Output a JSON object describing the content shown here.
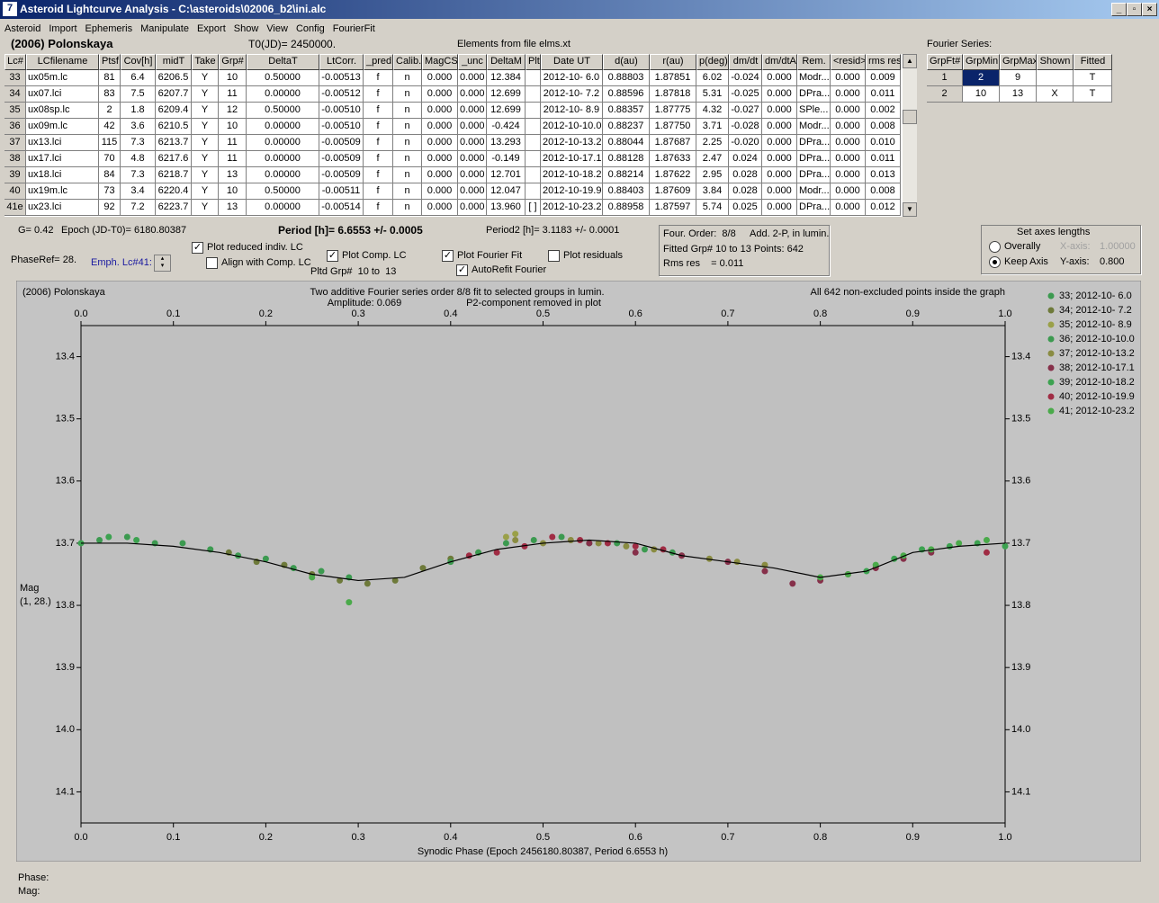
{
  "window": {
    "title": "Asteroid Lightcurve Analysis - C:\\asteroids\\02006_b2\\ini.alc",
    "menu": [
      "Asteroid",
      "Import",
      "Ephemeris",
      "Manipulate",
      "Export",
      "Show",
      "View",
      "Config",
      "FourierFit"
    ]
  },
  "header": {
    "object": "(2006) Polonskaya",
    "t0": "T0(JD)= 2450000.",
    "elements": "Elements from file elms.xt",
    "fourier_label": "Fourier Series:"
  },
  "table": {
    "columns": [
      "Lc#",
      "LCfilename",
      "Ptsf",
      "Cov[h]",
      "midT",
      "Take",
      "Grp#",
      "DeltaT",
      "LtCorr.",
      "_pred.",
      "Calib.",
      "MagCS",
      "_unc",
      "DeltaM",
      "Plt",
      "Date UT",
      "d(au)",
      "r(au)",
      "p(deg)",
      "dm/dt",
      "dm/dtA",
      "Rem.",
      "<resid>",
      "rms res"
    ],
    "rows": [
      [
        "33",
        "ux05m.lc",
        "81",
        "6.4",
        "6206.5",
        "Y",
        "10",
        "0.50000",
        "-0.00513",
        "f",
        "n",
        "0.000",
        "0.000",
        "12.384",
        null,
        "2012-10- 6.0",
        "0.88803",
        "1.87851",
        "6.02",
        "-0.024",
        "0.000",
        "Modr...",
        "0.000",
        "0.009"
      ],
      [
        "34",
        "ux07.lci",
        "83",
        "7.5",
        "6207.7",
        "Y",
        "11",
        "0.00000",
        "-0.00512",
        "f",
        "n",
        "0.000",
        "0.000",
        "12.699",
        null,
        "2012-10- 7.2",
        "0.88596",
        "1.87818",
        "5.31",
        "-0.025",
        "0.000",
        "DPra...",
        "0.000",
        "0.011"
      ],
      [
        "35",
        "ux08sp.lc",
        "2",
        "1.8",
        "6209.4",
        "Y",
        "12",
        "0.50000",
        "-0.00510",
        "f",
        "n",
        "0.000",
        "0.000",
        "12.699",
        null,
        "2012-10- 8.9",
        "0.88357",
        "1.87775",
        "4.32",
        "-0.027",
        "0.000",
        "SPle...",
        "0.000",
        "0.002"
      ],
      [
        "36",
        "ux09m.lc",
        "42",
        "3.6",
        "6210.5",
        "Y",
        "10",
        "0.00000",
        "-0.00510",
        "f",
        "n",
        "0.000",
        "0.000",
        "-0.424",
        null,
        "2012-10-10.0",
        "0.88237",
        "1.87750",
        "3.71",
        "-0.028",
        "0.000",
        "Modr...",
        "0.000",
        "0.008"
      ],
      [
        "37",
        "ux13.lci",
        "115",
        "7.3",
        "6213.7",
        "Y",
        "11",
        "0.00000",
        "-0.00509",
        "f",
        "n",
        "0.000",
        "0.000",
        "13.293",
        null,
        "2012-10-13.2",
        "0.88044",
        "1.87687",
        "2.25",
        "-0.020",
        "0.000",
        "DPra...",
        "0.000",
        "0.010"
      ],
      [
        "38",
        "ux17.lci",
        "70",
        "4.8",
        "6217.6",
        "Y",
        "11",
        "0.00000",
        "-0.00509",
        "f",
        "n",
        "0.000",
        "0.000",
        "-0.149",
        null,
        "2012-10-17.1",
        "0.88128",
        "1.87633",
        "2.47",
        "0.024",
        "0.000",
        "DPra...",
        "0.000",
        "0.011"
      ],
      [
        "39",
        "ux18.lci",
        "84",
        "7.3",
        "6218.7",
        "Y",
        "13",
        "0.00000",
        "-0.00509",
        "f",
        "n",
        "0.000",
        "0.000",
        "12.701",
        null,
        "2012-10-18.2",
        "0.88214",
        "1.87622",
        "2.95",
        "0.028",
        "0.000",
        "DPra...",
        "0.000",
        "0.013"
      ],
      [
        "40",
        "ux19m.lc",
        "73",
        "3.4",
        "6220.4",
        "Y",
        "10",
        "0.50000",
        "-0.00511",
        "f",
        "n",
        "0.000",
        "0.000",
        "12.047",
        null,
        "2012-10-19.9",
        "0.88403",
        "1.87609",
        "3.84",
        "0.028",
        "0.000",
        "Modr...",
        "0.000",
        "0.008"
      ],
      [
        "41e",
        "ux23.lci",
        "92",
        "7.2",
        "6223.7",
        "Y",
        "13",
        "0.00000",
        "-0.00514",
        "f",
        "n",
        "0.000",
        "0.000",
        "13.960",
        "[ ]",
        "2012-10-23.2",
        "0.88958",
        "1.87597",
        "5.74",
        "0.025",
        "0.000",
        "DPra...",
        "0.000",
        "0.012"
      ]
    ]
  },
  "fourier_table": {
    "columns": [
      "GrpFt#",
      "GrpMin",
      "GrpMax",
      "Shown",
      "Fitted"
    ],
    "rows": [
      [
        "1",
        "2",
        "9",
        null,
        "T"
      ],
      [
        "2",
        "10",
        "13",
        "X",
        "T"
      ]
    ]
  },
  "info": {
    "g": "G= 0.42",
    "epoch": "Epoch (JD-T0)= 6180.80387",
    "period": "Period [h]= 6.6553 +/- 0.0005",
    "period2": "Period2 [h]= 3.1183 +/- 0.0001",
    "phaseref": "PhaseRef= 28.",
    "emph": "Emph. Lc#41:",
    "pltd": "Pltd Grp#  10 to  13",
    "controls": [
      {
        "label": "Plot reduced indiv. LC",
        "checked": true
      },
      {
        "label": "Align with Comp. LC",
        "checked": false
      },
      {
        "label": "Plot Comp. LC",
        "checked": true
      },
      {
        "label": "Plot Fourier Fit",
        "checked": true
      },
      {
        "label": "AutoRefit Fourier",
        "checked": true
      },
      {
        "label": "Plot residuals",
        "checked": false
      }
    ],
    "fit_box": [
      "Four. Order:  8/8",
      "Add. 2-P, in lumin.",
      "Fitted Grp# 10 to 13 Points: 642",
      "Rms res    = 0.011"
    ],
    "axes_box": {
      "title": "Set axes lengths",
      "options": [
        {
          "label": "Overally",
          "selected": false
        },
        {
          "label": "Keep Axis",
          "selected": true
        }
      ],
      "x_label": "X-axis:",
      "x_value": "1.00000",
      "y_label": "Y-axis:",
      "y_value": "0.800"
    }
  },
  "chart_data": {
    "type": "scatter",
    "title": "(2006) Polonskaya",
    "subtitle": "Two additive Fourier series order 8/8 fit to selected groups in lumin.",
    "annotations": [
      "Amplitude: 0.069",
      "P2-component removed in plot",
      "All 642 non-excluded points inside the graph"
    ],
    "xlabel": "Synodic Phase (Epoch 2456180.80387, Period 6.6553 h)",
    "ylabel": [
      "Mag",
      "(1, 28.)"
    ],
    "xlim": [
      0,
      1
    ],
    "ylim": [
      13.35,
      14.15
    ],
    "invert_y": true,
    "xticks": [
      {
        "value": 0,
        "label": "0.0"
      },
      0.1,
      0.2,
      0.3,
      0.4,
      0.5,
      0.6,
      0.7,
      0.8,
      0.9,
      {
        "value": 1,
        "label": "1.0"
      }
    ],
    "yticks": [
      13.4,
      13.5,
      13.6,
      13.7,
      13.8,
      13.9,
      {
        "value": 14,
        "label": "14.0"
      },
      14.1
    ],
    "fit": {
      "color": "#000000",
      "x": [
        0,
        0.05,
        0.1,
        0.15,
        0.2,
        0.25,
        0.3,
        0.35,
        0.4,
        0.45,
        0.5,
        0.55,
        0.6,
        0.65,
        0.7,
        0.75,
        0.8,
        0.85,
        0.9,
        0.95,
        1
      ],
      "values": [
        13.7,
        13.7,
        13.705,
        13.715,
        13.73,
        13.75,
        13.76,
        13.755,
        13.73,
        13.71,
        13.7,
        13.695,
        13.7,
        13.72,
        13.73,
        13.74,
        13.755,
        13.745,
        13.715,
        13.705,
        13.7
      ]
    },
    "series": [
      {
        "name": "33; 2012-10- 6.0",
        "color": "#3c9a50",
        "x": [
          0.02,
          0.05,
          0.08,
          0.11,
          0.14,
          0.17,
          0.2,
          0.23,
          0.26,
          0.29
        ],
        "values": [
          13.695,
          13.69,
          13.7,
          13.7,
          13.71,
          13.72,
          13.725,
          13.74,
          13.745,
          13.755
        ]
      },
      {
        "name": "34; 2012-10- 7.2",
        "color": "#6e7a3a",
        "x": [
          0.16,
          0.19,
          0.22,
          0.25,
          0.28,
          0.31,
          0.34,
          0.37,
          0.4,
          0.43
        ],
        "values": [
          13.715,
          13.73,
          13.735,
          13.75,
          13.76,
          13.765,
          13.76,
          13.74,
          13.725,
          13.715
        ]
      },
      {
        "name": "35; 2012-10- 8.9",
        "color": "#9aa048",
        "x": [
          0.46,
          0.47
        ],
        "values": [
          13.69,
          13.685
        ]
      },
      {
        "name": "36; 2012-10-10.0",
        "color": "#3c9a50",
        "x": [
          0.4,
          0.43,
          0.46,
          0.49,
          0.52,
          0.55,
          0.58,
          0.61,
          0.64
        ],
        "values": [
          13.73,
          13.715,
          13.7,
          13.695,
          13.69,
          13.7,
          13.7,
          13.71,
          13.715
        ]
      },
      {
        "name": "37; 2012-10-13.2",
        "color": "#8a8c42",
        "x": [
          0.47,
          0.5,
          0.53,
          0.56,
          0.59,
          0.62,
          0.65,
          0.68,
          0.71,
          0.74
        ],
        "values": [
          13.695,
          13.7,
          13.695,
          13.7,
          13.705,
          13.71,
          13.72,
          13.725,
          13.73,
          13.735
        ]
      },
      {
        "name": "38; 2012-10-17.1",
        "color": "#86304a",
        "x": [
          0.55,
          0.6,
          0.65,
          0.7,
          0.74,
          0.77,
          0.8,
          0.83,
          0.86,
          0.89,
          0.92
        ],
        "values": [
          13.7,
          13.715,
          13.72,
          13.73,
          13.745,
          13.765,
          13.76,
          13.75,
          13.74,
          13.725,
          13.715
        ]
      },
      {
        "name": "39; 2012-10-18.2",
        "color": "#3ca250",
        "x": [
          0,
          0.03,
          0.06,
          0.85,
          0.88,
          0.91,
          0.94,
          0.97,
          1
        ],
        "values": [
          13.7,
          13.69,
          13.695,
          13.745,
          13.725,
          13.71,
          13.705,
          13.7,
          13.705
        ]
      },
      {
        "name": "40; 2012-10-19.9",
        "color": "#a02c44",
        "x": [
          0.42,
          0.45,
          0.48,
          0.51,
          0.54,
          0.57,
          0.6,
          0.63,
          0.98
        ],
        "values": [
          13.72,
          13.715,
          13.705,
          13.69,
          13.695,
          13.7,
          13.705,
          13.71,
          13.715
        ]
      },
      {
        "name": "41; 2012-10-23.2",
        "color": "#4aaa4a",
        "x": [
          0.8,
          0.83,
          0.86,
          0.89,
          0.92,
          0.95,
          0.98,
          0.25,
          0.29
        ],
        "values": [
          13.755,
          13.75,
          13.735,
          13.72,
          13.71,
          13.7,
          13.695,
          13.755,
          13.795
        ]
      }
    ]
  },
  "status": {
    "phase": "Phase:",
    "mag": "Mag:"
  }
}
